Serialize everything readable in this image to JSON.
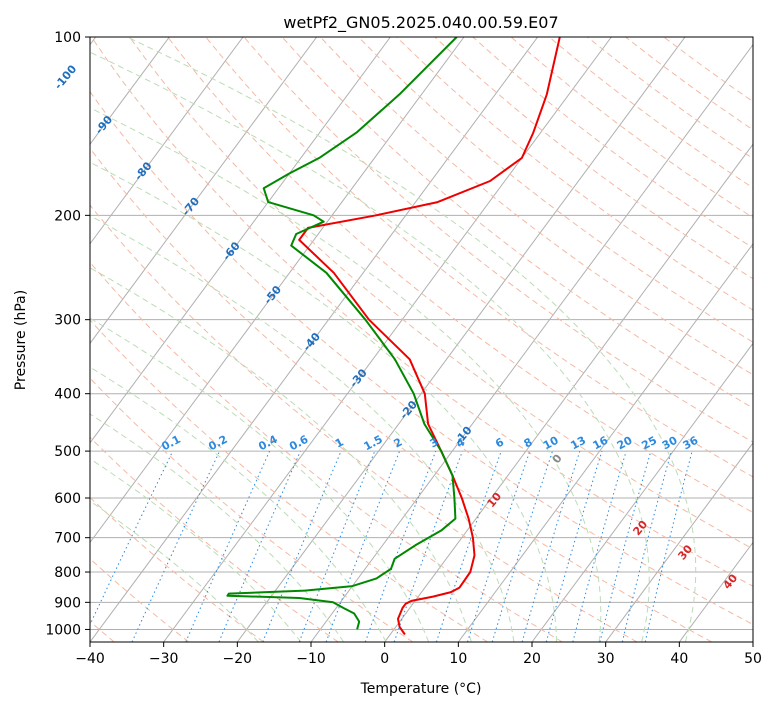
{
  "chart_data": {
    "type": "line",
    "title": "wetPf2_GN05.2025.040.00.59.E07",
    "xlabel": "Temperature (°C)",
    "ylabel": "Pressure (hPa)",
    "xlim": [
      -40,
      50
    ],
    "ylim": [
      1050,
      100
    ],
    "y_scale": "log",
    "skew": true,
    "grid": true,
    "x_ticks": [
      -40,
      -30,
      -20,
      -10,
      0,
      10,
      20,
      30,
      40,
      50
    ],
    "x_tick_labels": [
      "−40",
      "−30",
      "−20",
      "−10",
      "0",
      "10",
      "20",
      "30",
      "40",
      "50"
    ],
    "y_ticks": [
      1000,
      900,
      800,
      700,
      600,
      500,
      400,
      300,
      200,
      100
    ],
    "y_tick_labels": [
      "1000",
      "900",
      "800",
      "700",
      "600",
      "500",
      "400",
      "300",
      "200",
      "100"
    ],
    "series": [
      {
        "color": "#ee0000",
        "points": [
          {
            "p": 1020,
            "t": 2.0
          },
          {
            "p": 990,
            "t": 0.5
          },
          {
            "p": 960,
            "t": -0.5
          },
          {
            "p": 920,
            "t": -1.0
          },
          {
            "p": 905,
            "t": -1.0
          },
          {
            "p": 895,
            "t": -0.5
          },
          {
            "p": 880,
            "t": 2.0
          },
          {
            "p": 865,
            "t": 4.0
          },
          {
            "p": 850,
            "t": 4.7
          },
          {
            "p": 800,
            "t": 4.6
          },
          {
            "p": 750,
            "t": 3.5
          },
          {
            "p": 700,
            "t": 1.5
          },
          {
            "p": 650,
            "t": -1.0
          },
          {
            "p": 600,
            "t": -4.0
          },
          {
            "p": 550,
            "t": -7.5
          },
          {
            "p": 500,
            "t": -11.5
          },
          {
            "p": 450,
            "t": -16.0
          },
          {
            "p": 400,
            "t": -19.5
          },
          {
            "p": 350,
            "t": -25.0
          },
          {
            "p": 300,
            "t": -34.5
          },
          {
            "p": 250,
            "t": -44.0
          },
          {
            "p": 220,
            "t": -52.0
          },
          {
            "p": 210,
            "t": -52.0
          },
          {
            "p": 200,
            "t": -44.0
          },
          {
            "p": 190,
            "t": -37.0
          },
          {
            "p": 175,
            "t": -32.0
          },
          {
            "p": 160,
            "t": -30.0
          },
          {
            "p": 145,
            "t": -31.0
          },
          {
            "p": 125,
            "t": -33.0
          },
          {
            "p": 100,
            "t": -37.0
          }
        ]
      },
      {
        "color": "#008800",
        "points": [
          {
            "p": 1000,
            "t": -5.0
          },
          {
            "p": 970,
            "t": -5.5
          },
          {
            "p": 940,
            "t": -7.0
          },
          {
            "p": 920,
            "t": -9.0
          },
          {
            "p": 900,
            "t": -11.0
          },
          {
            "p": 885,
            "t": -16.0
          },
          {
            "p": 877,
            "t": -26.0
          },
          {
            "p": 870,
            "t": -26.0
          },
          {
            "p": 860,
            "t": -16.0
          },
          {
            "p": 845,
            "t": -10.0
          },
          {
            "p": 820,
            "t": -7.5
          },
          {
            "p": 790,
            "t": -6.5
          },
          {
            "p": 760,
            "t": -7.0
          },
          {
            "p": 720,
            "t": -5.5
          },
          {
            "p": 680,
            "t": -3.5
          },
          {
            "p": 650,
            "t": -2.8
          },
          {
            "p": 600,
            "t": -5.0
          },
          {
            "p": 550,
            "t": -7.5
          },
          {
            "p": 500,
            "t": -11.5
          },
          {
            "p": 450,
            "t": -16.5
          },
          {
            "p": 400,
            "t": -21.0
          },
          {
            "p": 350,
            "t": -27.0
          },
          {
            "p": 300,
            "t": -35.0
          },
          {
            "p": 250,
            "t": -45.0
          },
          {
            "p": 225,
            "t": -52.5
          },
          {
            "p": 215,
            "t": -53.0
          },
          {
            "p": 205,
            "t": -50.5
          },
          {
            "p": 200,
            "t": -52.5
          },
          {
            "p": 190,
            "t": -60.0
          },
          {
            "p": 180,
            "t": -62.0
          },
          {
            "p": 170,
            "t": -60.0
          },
          {
            "p": 160,
            "t": -57.5
          },
          {
            "p": 145,
            "t": -55.0
          },
          {
            "p": 125,
            "t": -53.0
          },
          {
            "p": 100,
            "t": -51.0
          }
        ]
      }
    ],
    "dry_adiabat_labels": [
      "-100",
      "-90",
      "-80",
      "-70",
      "-60",
      "-50",
      "-40",
      "-30",
      "-20",
      "-10"
    ],
    "mixing_ratio_labels": [
      "0.1",
      "0.2",
      "0.4",
      "0.6",
      "1",
      "1.5",
      "2",
      "3",
      "4",
      "6",
      "8",
      "10",
      "13",
      "16",
      "20",
      "25",
      "30",
      "36"
    ],
    "moist_adiabat_labels": [
      "0",
      "10",
      "20",
      "30",
      "40"
    ]
  }
}
